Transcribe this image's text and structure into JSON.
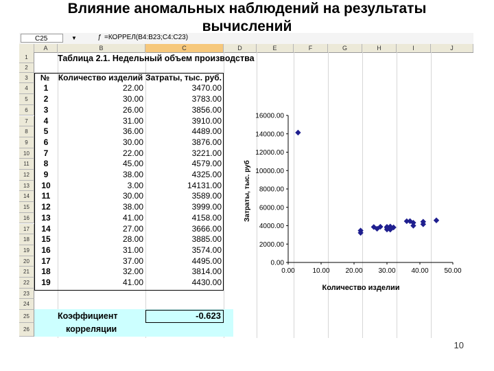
{
  "slide": {
    "title_line1": "Влияние аномальных наблюдений на результаты",
    "title_line2": "вычислений",
    "page_number": "10"
  },
  "formula_bar": {
    "name_box": "C25",
    "fx_icon": "fx-icon",
    "formula": "=КОРРЕЛ(B4:B23;C4:C23)"
  },
  "columns": [
    "A",
    "B",
    "C",
    "D",
    "E",
    "F",
    "G",
    "H",
    "I",
    "J"
  ],
  "row_numbers": [
    "1",
    "2",
    "3",
    "4",
    "5",
    "6",
    "7",
    "8",
    "9",
    "10",
    "11",
    "12",
    "13",
    "14",
    "15",
    "16",
    "17",
    "18",
    "19",
    "20",
    "21",
    "22",
    "23",
    "24",
    "25",
    "26"
  ],
  "table": {
    "title": "Таблица 2.1. Недельный объем производства",
    "headers": [
      "№",
      "Количество изделий",
      "Затраты, тыс. руб."
    ],
    "rows": [
      [
        "1",
        "22.00",
        "3470.00"
      ],
      [
        "2",
        "30.00",
        "3783.00"
      ],
      [
        "3",
        "26.00",
        "3856.00"
      ],
      [
        "4",
        "31.00",
        "3910.00"
      ],
      [
        "5",
        "36.00",
        "4489.00"
      ],
      [
        "6",
        "30.00",
        "3876.00"
      ],
      [
        "7",
        "22.00",
        "3221.00"
      ],
      [
        "8",
        "45.00",
        "4579.00"
      ],
      [
        "9",
        "38.00",
        "4325.00"
      ],
      [
        "10",
        "3.00",
        "14131.00"
      ],
      [
        "11",
        "30.00",
        "3589.00"
      ],
      [
        "12",
        "38.00",
        "3999.00"
      ],
      [
        "13",
        "41.00",
        "4158.00"
      ],
      [
        "14",
        "27.00",
        "3666.00"
      ],
      [
        "15",
        "28.00",
        "3885.00"
      ],
      [
        "16",
        "31.00",
        "3574.00"
      ],
      [
        "17",
        "37.00",
        "4495.00"
      ],
      [
        "18",
        "32.00",
        "3814.00"
      ],
      [
        "19",
        "41.00",
        "4430.00"
      ]
    ]
  },
  "coefficient": {
    "label_line1": "Коэффициент",
    "label_line2": "корреляции",
    "value": "-0.623"
  },
  "chart_data": {
    "type": "scatter",
    "xlabel": "Количество изделии",
    "ylabel": "Затраты, тыс. руб",
    "xlim": [
      0,
      50
    ],
    "ylim": [
      0,
      16000
    ],
    "x_ticks": [
      "0.00",
      "10.00",
      "20.00",
      "30.00",
      "40.00",
      "50.00"
    ],
    "y_ticks": [
      "0.00",
      "2000.00",
      "4000.00",
      "6000.00",
      "8000.00",
      "10000.00",
      "12000.00",
      "14000.00",
      "16000.00"
    ],
    "marker_color": "#1f1f8f",
    "grid": false,
    "points": [
      [
        22,
        3470
      ],
      [
        30,
        3783
      ],
      [
        26,
        3856
      ],
      [
        31,
        3910
      ],
      [
        36,
        4489
      ],
      [
        30,
        3876
      ],
      [
        22,
        3221
      ],
      [
        45,
        4579
      ],
      [
        38,
        4325
      ],
      [
        3,
        14131
      ],
      [
        30,
        3589
      ],
      [
        38,
        3999
      ],
      [
        41,
        4158
      ],
      [
        27,
        3666
      ],
      [
        28,
        3885
      ],
      [
        31,
        3574
      ],
      [
        37,
        4495
      ],
      [
        32,
        3814
      ],
      [
        41,
        4430
      ]
    ]
  }
}
